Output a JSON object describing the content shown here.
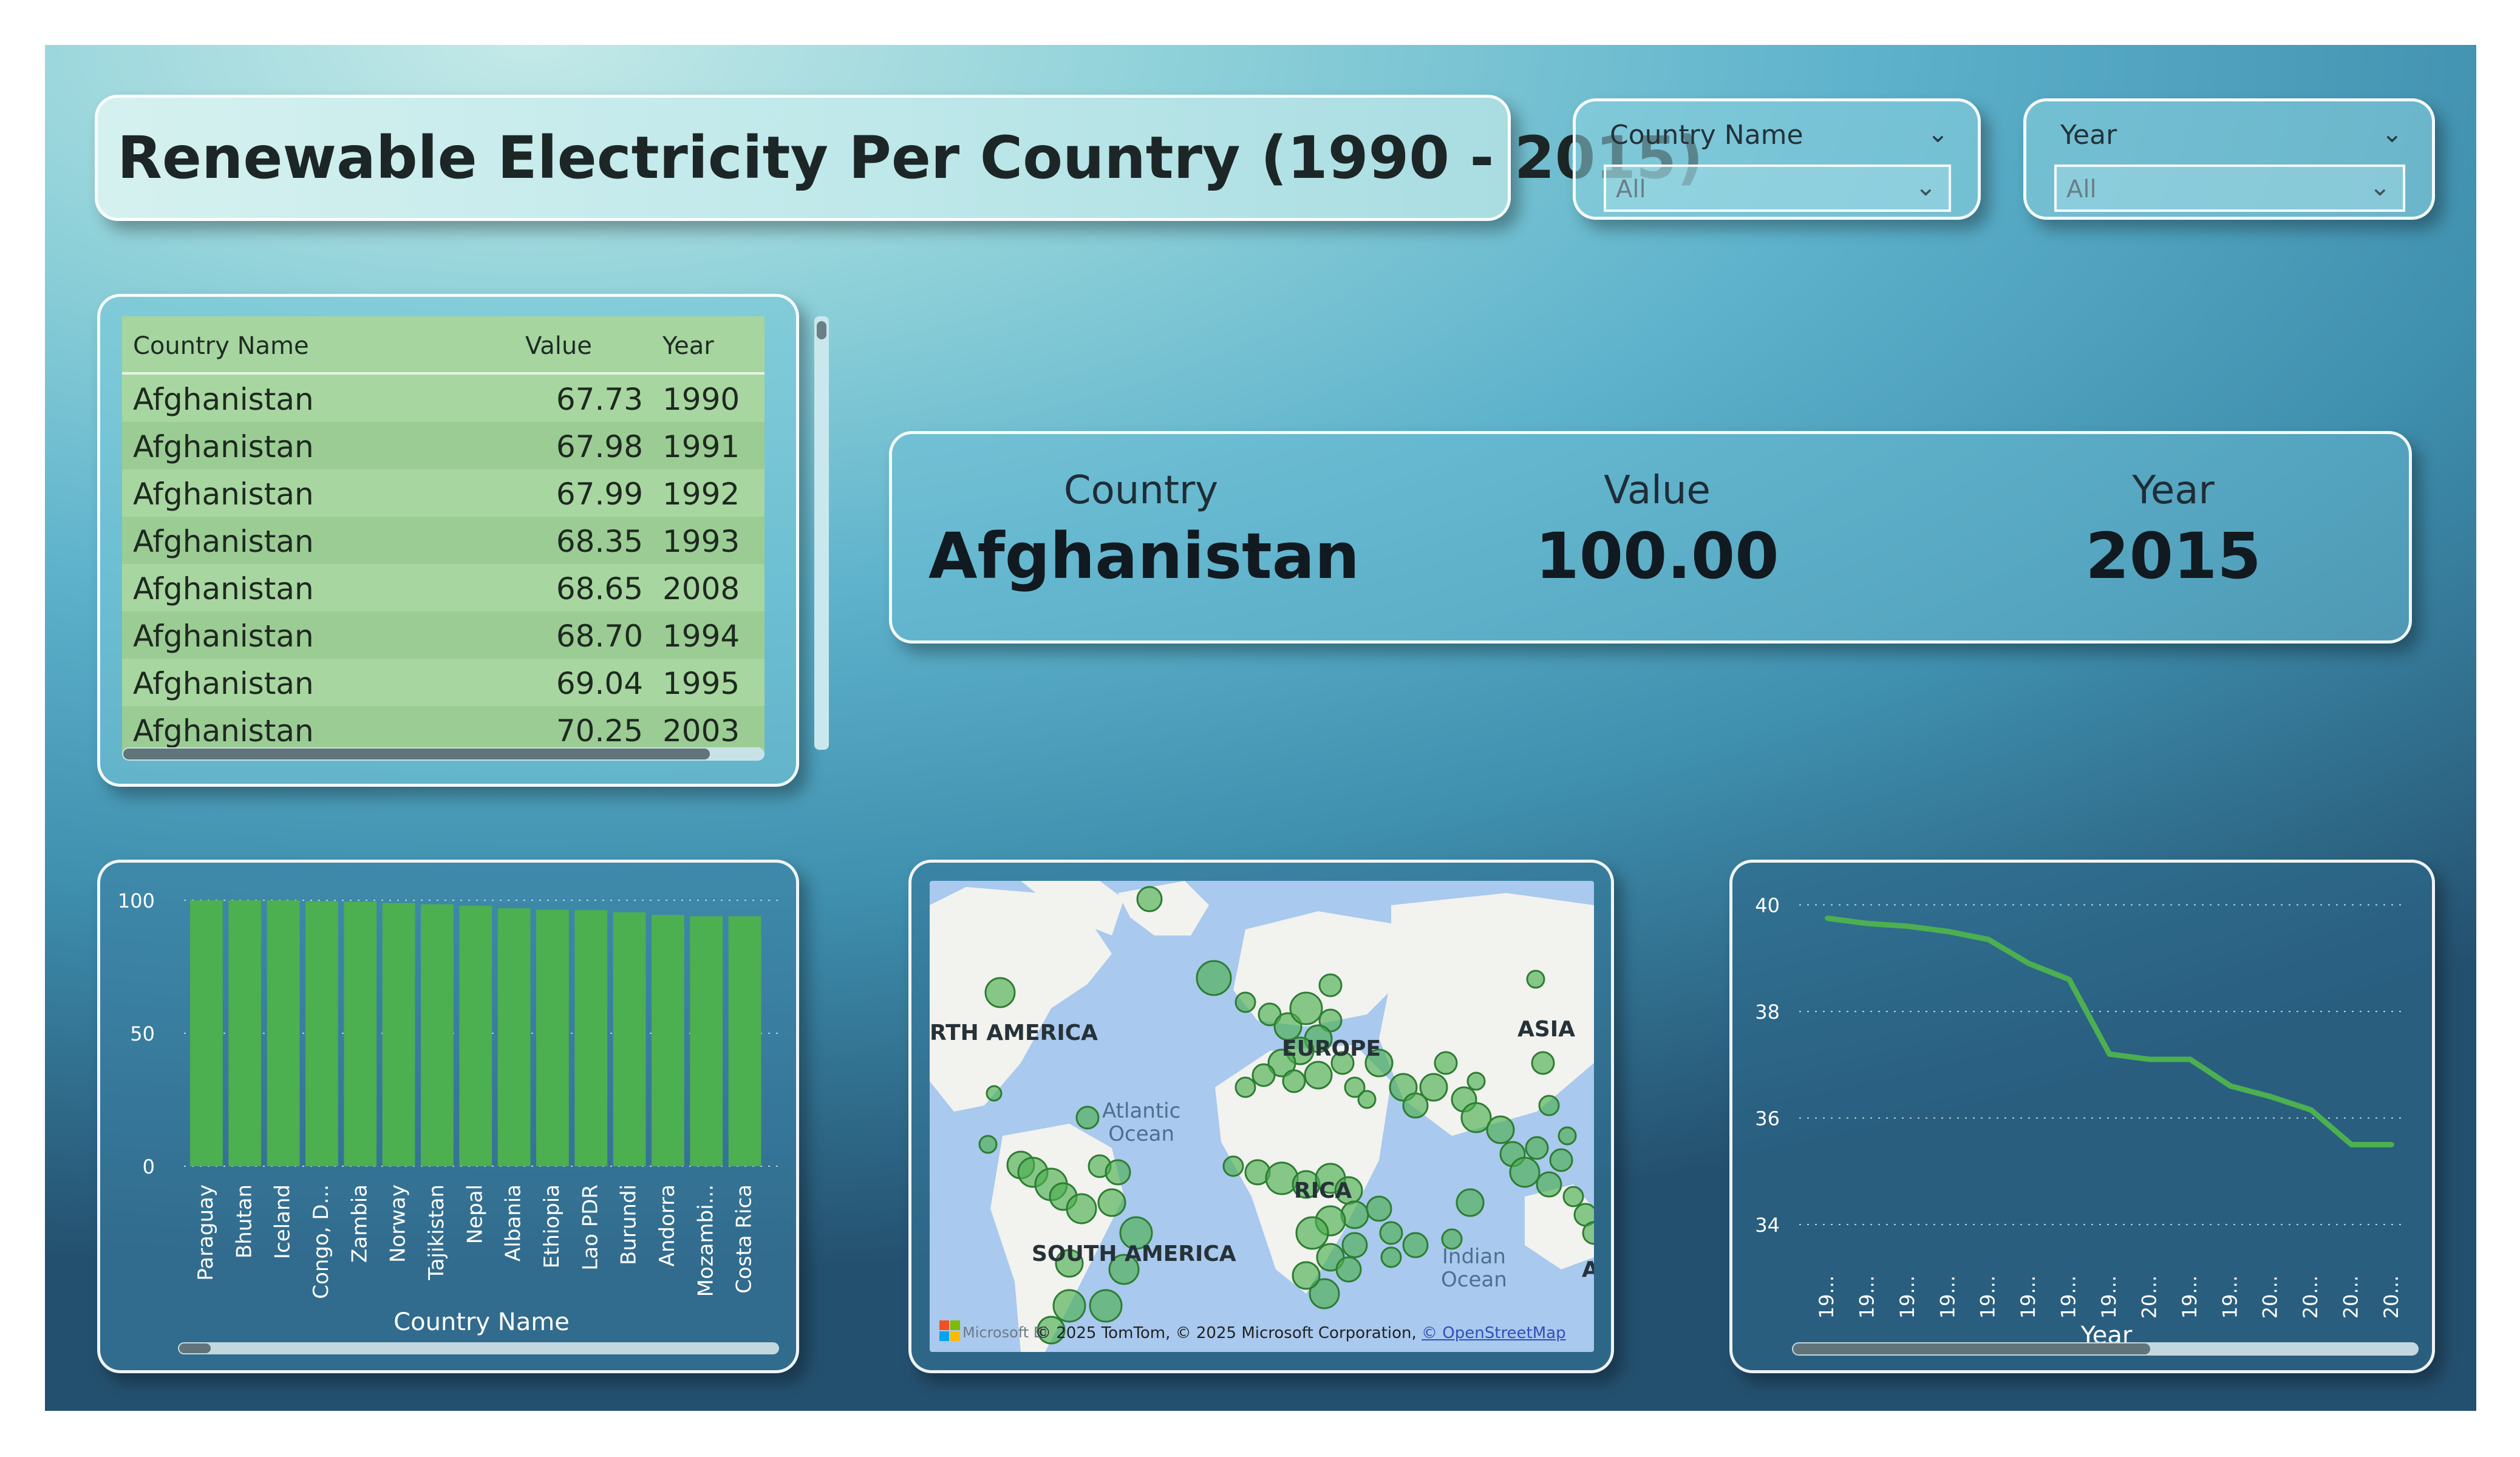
{
  "header": {
    "title": "Renewable Electricity Per Country (1990 - 2015)"
  },
  "slicers": {
    "country": {
      "label": "Country Name",
      "value": "All"
    },
    "year": {
      "label": "Year",
      "value": "All"
    }
  },
  "table": {
    "columns": [
      "Country Name",
      "Value",
      "Year"
    ],
    "rows": [
      [
        "Afghanistan",
        "67.73",
        "1990"
      ],
      [
        "Afghanistan",
        "67.98",
        "1991"
      ],
      [
        "Afghanistan",
        "67.99",
        "1992"
      ],
      [
        "Afghanistan",
        "68.35",
        "1993"
      ],
      [
        "Afghanistan",
        "68.65",
        "2008"
      ],
      [
        "Afghanistan",
        "68.70",
        "1994"
      ],
      [
        "Afghanistan",
        "69.04",
        "1995"
      ],
      [
        "Afghanistan",
        "70.25",
        "2003"
      ]
    ]
  },
  "kpi": {
    "country_label": "Country",
    "country_value": "Afghanistan",
    "value_label": "Value",
    "value_value": "100.00",
    "year_label": "Year",
    "year_value": "2015"
  },
  "map": {
    "labels": {
      "north_america": "RTH AMERICA",
      "europe": "EUROPE",
      "asia": "ASIA",
      "south_america": "SOUTH AMERICA",
      "africa": "RICA",
      "atlantic": "Atlantic",
      "atlantic2": "Ocean",
      "indian": "Indian",
      "indian2": "Ocean",
      "a": "A"
    },
    "ms_text": "Microsoft Bi",
    "copyright": "© 2025 TomTom, © 2025 Microsoft Corporation, ",
    "copyright_link": "© OpenStreetMap"
  },
  "chart_data": [
    {
      "type": "bar",
      "categories": [
        "Paraguay",
        "Bhutan",
        "Iceland",
        "Congo, D...",
        "Zambia",
        "Norway",
        "Tajikistan",
        "Nepal",
        "Albania",
        "Ethiopia",
        "Lao PDR",
        "Burundi",
        "Andorra",
        "Mozambi...",
        "Costa Rica"
      ],
      "values": [
        100,
        100,
        100,
        99.7,
        99.5,
        99,
        98.5,
        98,
        97,
        96.5,
        96.3,
        95.5,
        94.5,
        94,
        94
      ],
      "xlabel": "Country Name",
      "ylabel": "",
      "ylim": [
        0,
        100
      ],
      "yticks": [
        0,
        50,
        100
      ],
      "color": "#4caf50"
    },
    {
      "type": "line",
      "x": [
        "19...",
        "19...",
        "19...",
        "19...",
        "19...",
        "19...",
        "19...",
        "19...",
        "20...",
        "19...",
        "19...",
        "20...",
        "20...",
        "20...",
        "20..."
      ],
      "values": [
        39.75,
        39.65,
        39.6,
        39.5,
        39.35,
        38.9,
        38.6,
        37.2,
        37.1,
        37.1,
        36.6,
        36.4,
        36.15,
        35.5,
        35.5
      ],
      "xlabel": "Year",
      "ylabel": "",
      "ylim": [
        33.5,
        40.2
      ],
      "yticks": [
        34,
        36,
        38,
        40
      ],
      "color": "#4caf50"
    }
  ]
}
